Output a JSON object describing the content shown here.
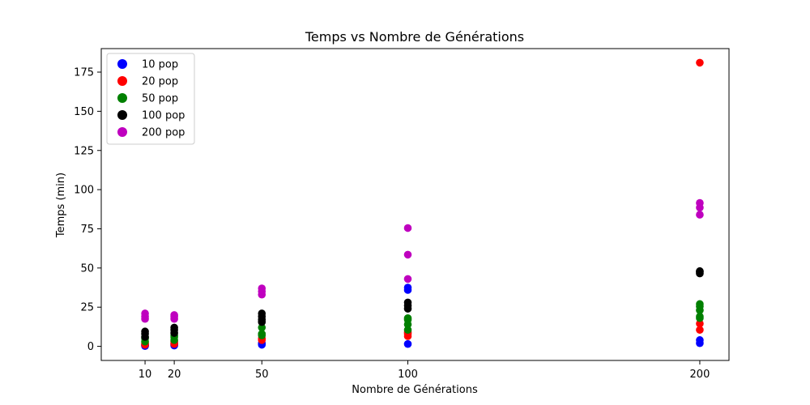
{
  "chart_data": {
    "type": "scatter",
    "title": "Temps vs Nombre de Générations",
    "xlabel": "Nombre de Générations",
    "ylabel": "Temps (min)",
    "xlim": [
      -5,
      210
    ],
    "ylim": [
      -9,
      190
    ],
    "xticks": [
      10,
      20,
      50,
      100,
      200
    ],
    "yticks": [
      0,
      25,
      50,
      75,
      100,
      125,
      150,
      175
    ],
    "grid": false,
    "legend_position": "top-left",
    "series": [
      {
        "name": "10 pop",
        "color": "#0000ff",
        "points": [
          [
            10,
            0.2
          ],
          [
            10,
            0.5
          ],
          [
            10,
            1.0
          ],
          [
            20,
            0.5
          ],
          [
            20,
            1.0
          ],
          [
            20,
            2.0
          ],
          [
            50,
            1.0
          ],
          [
            50,
            2.0
          ],
          [
            100,
            1.5
          ],
          [
            100,
            36.0
          ],
          [
            100,
            37.5
          ],
          [
            200,
            2.0
          ],
          [
            200,
            4.0
          ]
        ]
      },
      {
        "name": "20 pop",
        "color": "#ff0000",
        "points": [
          [
            10,
            1.0
          ],
          [
            10,
            2.0
          ],
          [
            20,
            1.5
          ],
          [
            20,
            3.0
          ],
          [
            50,
            4.0
          ],
          [
            50,
            5.0
          ],
          [
            100,
            6.5
          ],
          [
            100,
            8.0
          ],
          [
            100,
            9.0
          ],
          [
            200,
            10.5
          ],
          [
            200,
            14.5
          ],
          [
            200,
            181.0
          ]
        ]
      },
      {
        "name": "50 pop",
        "color": "#008000",
        "points": [
          [
            10,
            3.0
          ],
          [
            10,
            5.0
          ],
          [
            10,
            6.0
          ],
          [
            20,
            4.0
          ],
          [
            20,
            6.0
          ],
          [
            20,
            7.0
          ],
          [
            50,
            7.0
          ],
          [
            50,
            8.0
          ],
          [
            50,
            12.0
          ],
          [
            100,
            10.5
          ],
          [
            100,
            14.0
          ],
          [
            100,
            17.0
          ],
          [
            100,
            18.0
          ],
          [
            200,
            18.0
          ],
          [
            200,
            19.0
          ],
          [
            200,
            23.0
          ],
          [
            200,
            25.5
          ],
          [
            200,
            27.0
          ]
        ]
      },
      {
        "name": "100 pop",
        "color": "#000000",
        "points": [
          [
            10,
            6.0
          ],
          [
            10,
            8.0
          ],
          [
            10,
            9.5
          ],
          [
            20,
            8.5
          ],
          [
            20,
            10.5
          ],
          [
            20,
            12.0
          ],
          [
            50,
            15.5
          ],
          [
            50,
            17.0
          ],
          [
            50,
            19.0
          ],
          [
            50,
            21.0
          ],
          [
            100,
            24.0
          ],
          [
            100,
            26.0
          ],
          [
            100,
            28.0
          ],
          [
            200,
            46.5
          ],
          [
            200,
            47.5
          ],
          [
            200,
            48.0
          ]
        ]
      },
      {
        "name": "200 pop",
        "color": "#bf00bf",
        "points": [
          [
            10,
            17.5
          ],
          [
            10,
            19.0
          ],
          [
            10,
            21.0
          ],
          [
            20,
            17.5
          ],
          [
            20,
            19.0
          ],
          [
            20,
            20.0
          ],
          [
            50,
            33.0
          ],
          [
            50,
            35.0
          ],
          [
            50,
            37.0
          ],
          [
            100,
            43.0
          ],
          [
            100,
            58.5
          ],
          [
            100,
            75.5
          ],
          [
            200,
            84.0
          ],
          [
            200,
            88.5
          ],
          [
            200,
            91.5
          ]
        ]
      }
    ]
  }
}
